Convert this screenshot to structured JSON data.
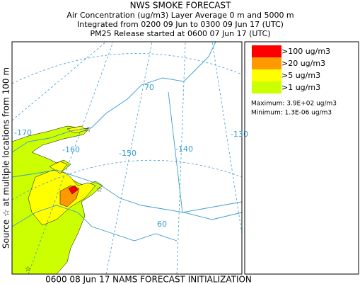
{
  "header": {
    "title": "NWS SMOKE FORECAST",
    "lines": [
      "Air Concentration (ug/m3) Layer Average    0 m and  5000 m",
      "Integrated from 0200 09 Jun to 0300 09 Jun 17 (UTC)",
      "PM25 Release started at 0600 07 Jun 17 (UTC)"
    ]
  },
  "side_label": "Source ☆  at multiple locations   from   100 m",
  "map": {
    "longitude_labels": [
      "-170",
      "-160",
      "-150",
      "-140",
      "-130"
    ],
    "latitude_labels": [
      "70",
      "60"
    ]
  },
  "legend": {
    "items": [
      {
        "label": ">100 ug/m3",
        "color": "#ff0000"
      },
      {
        "label": ">20 ug/m3",
        "color": "#ff9900"
      },
      {
        "label": ">5 ug/m3",
        "color": "#ffff00"
      },
      {
        "label": ">1 ug/m3",
        "color": "#ccff00"
      }
    ],
    "maximum": "Maximum: 3.9E+02 ug/m3",
    "minimum": "Minimum: 1.3E-06 ug/m3"
  },
  "footer": "0600 08 Jun 17 NAMS FORECAST INITIALIZATION"
}
